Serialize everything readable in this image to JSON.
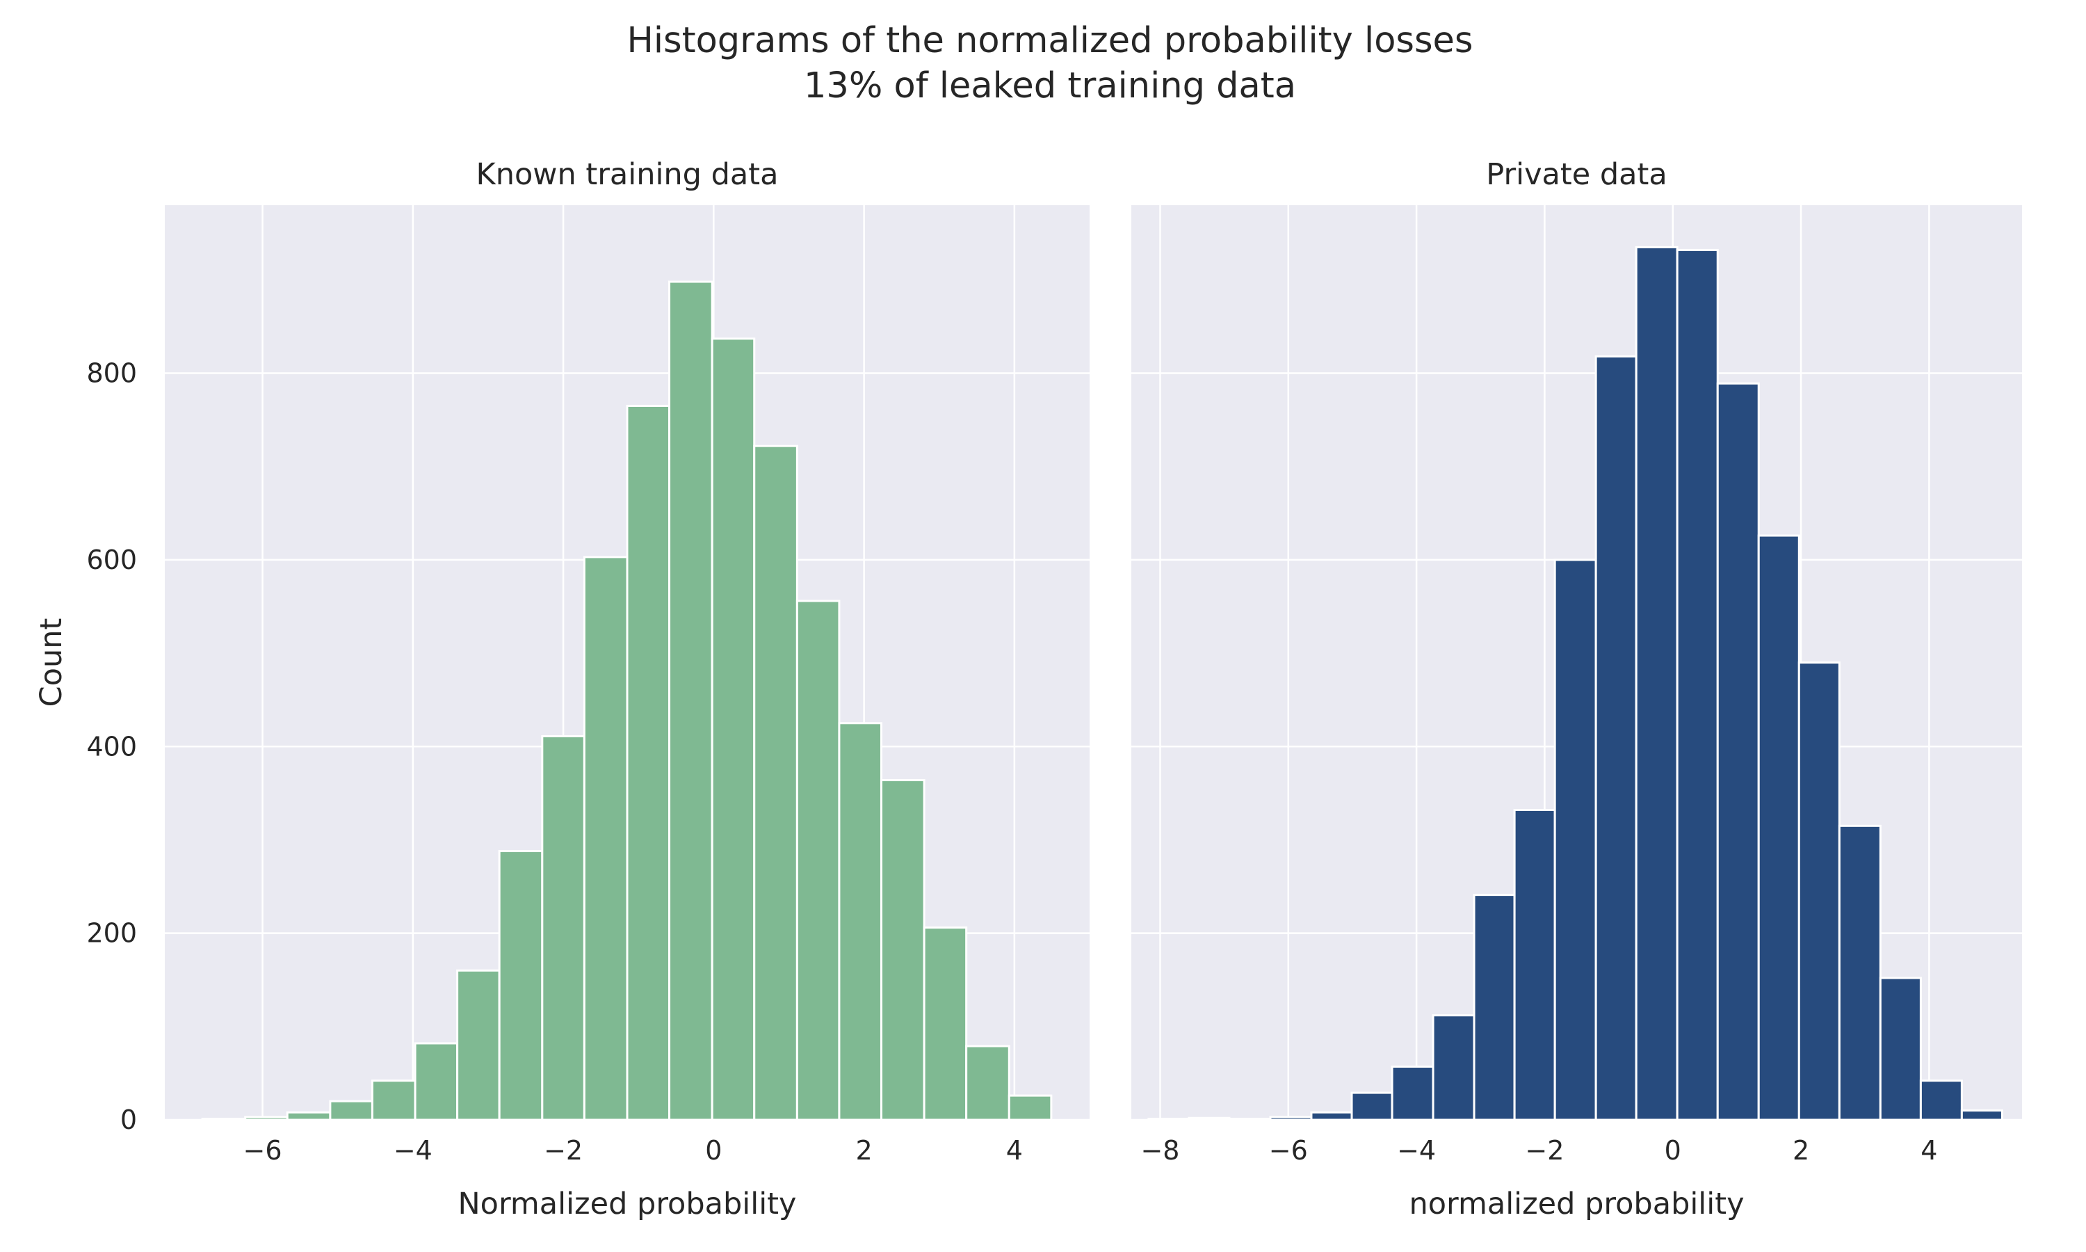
{
  "figure": {
    "title_line1": "Histograms of the normalized probability losses",
    "title_line2": "13% of leaked training data"
  },
  "chart_data": [
    {
      "type": "bar",
      "title": "Known training data",
      "xlabel": "Normalized probability",
      "ylabel": "Count",
      "color": "#7FB992",
      "xlim": [
        -7.3,
        5.0
      ],
      "ylim": [
        0,
        980
      ],
      "xticks": [
        -6,
        -4,
        -2,
        0,
        2,
        4
      ],
      "yticks": [
        0,
        200,
        400,
        600,
        800
      ],
      "bin_edges": [
        -6.8,
        -6.23,
        -5.67,
        -5.1,
        -4.54,
        -3.97,
        -3.41,
        -2.85,
        -2.28,
        -1.72,
        -1.15,
        -0.59,
        -0.02,
        0.54,
        1.11,
        1.67,
        2.23,
        2.8,
        3.36,
        3.93,
        4.49
      ],
      "values": [
        1,
        3,
        8,
        20,
        42,
        82,
        160,
        288,
        411,
        603,
        765,
        898,
        837,
        722,
        556,
        425,
        364,
        206,
        79,
        26
      ]
    },
    {
      "type": "bar",
      "title": "Private data",
      "xlabel": "normalized probability",
      "ylabel": "",
      "color": "#274B7E",
      "xlim": [
        -8.45,
        5.45
      ],
      "ylim": [
        0,
        980
      ],
      "xticks": [
        -8,
        -6,
        -4,
        -2,
        0,
        2,
        4
      ],
      "yticks": [
        0,
        200,
        400,
        600,
        800
      ],
      "bin_edges": [
        -8.18,
        -7.55,
        -6.92,
        -6.28,
        -5.64,
        -5.01,
        -4.38,
        -3.74,
        -3.1,
        -2.47,
        -1.84,
        -1.2,
        -0.57,
        0.07,
        0.7,
        1.34,
        1.97,
        2.6,
        3.24,
        3.87,
        4.51,
        5.14
      ],
      "values": [
        1,
        2,
        1,
        3,
        8,
        29,
        57,
        112,
        241,
        332,
        600,
        818,
        935,
        932,
        789,
        626,
        490,
        315,
        152,
        42,
        10
      ]
    }
  ]
}
